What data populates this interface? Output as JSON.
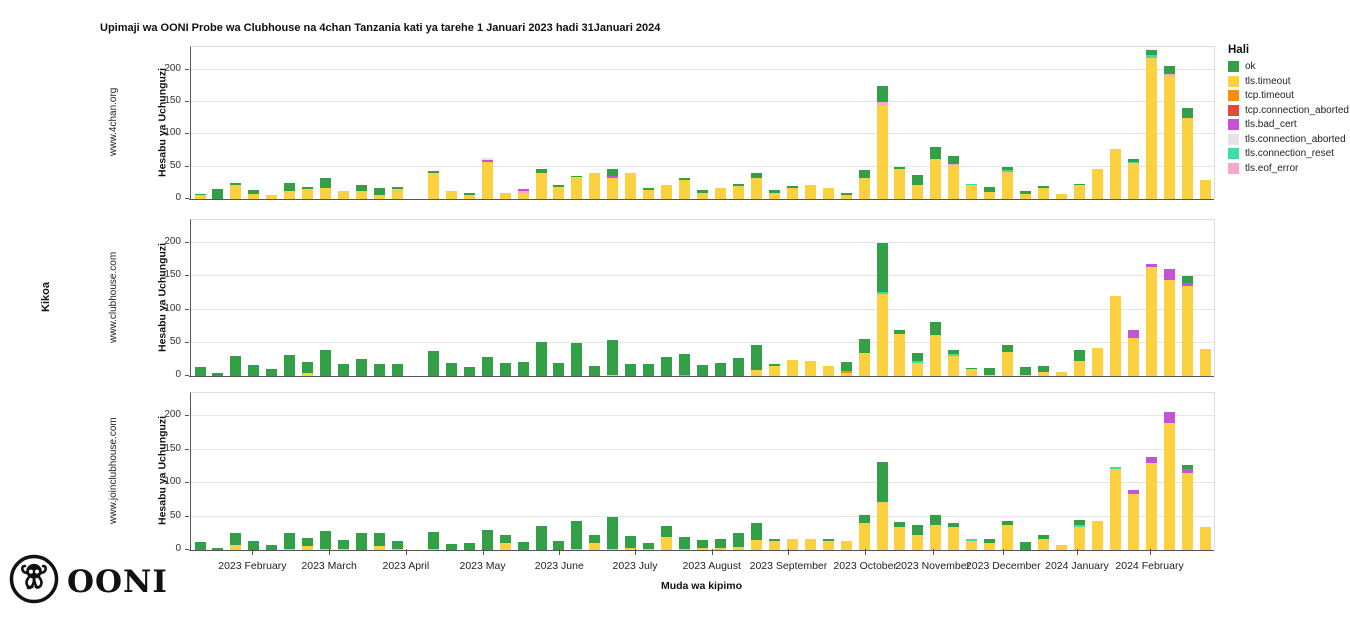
{
  "title": "Upimaji wa OONI Probe wa Clubhouse na 4chan Tanzania kati ya tarehe 1 Januari 2023 hadi 31Januari 2024",
  "axes": {
    "y_label": "Hesabu ya Uchunguzi",
    "x_label": "Muda wa kipimo",
    "row_label": "Kikoa",
    "y_ticks": [
      0,
      50,
      100,
      150,
      200
    ]
  },
  "legend": {
    "title": "Hali",
    "entries": [
      {
        "label": "ok",
        "color": "#33a047"
      },
      {
        "label": "tls.timeout",
        "color": "#fcd13f"
      },
      {
        "label": "tcp.timeout",
        "color": "#ff8c0e"
      },
      {
        "label": "tcp.connection_aborted",
        "color": "#e8473f"
      },
      {
        "label": "tls.bad_cert",
        "color": "#c353d8"
      },
      {
        "label": "tls.connection_aborted",
        "color": "#e3e3ea"
      },
      {
        "label": "tls.connection_reset",
        "color": "#3edca6"
      },
      {
        "label": "tls.eof_error",
        "color": "#f9a6c9"
      }
    ]
  },
  "logo_text": "OONI",
  "chart_data": {
    "type": "bar",
    "stacked": true,
    "ylim": [
      0,
      235
    ],
    "grid": true,
    "legend_position": "right",
    "x_unit": "week",
    "x_tick_labels": [
      "2023 February",
      "2023 March",
      "2023 April",
      "2023 May",
      "2023 June",
      "2023 July",
      "2023 August",
      "2023 September",
      "2023 October",
      "2023 November",
      "2023 December",
      "2024 January",
      "2024 February"
    ],
    "x_tick_pos_pct": [
      6.1,
      13.6,
      21.1,
      28.6,
      36.1,
      43.5,
      51.0,
      58.5,
      66.0,
      72.6,
      79.5,
      86.7,
      93.8
    ],
    "stack_order": [
      "tls.timeout",
      "tcp.timeout",
      "tcp.connection_aborted",
      "tls.eof_error",
      "tls.bad_cert",
      "tls.connection_aborted",
      "tls.connection_reset",
      "ok"
    ],
    "status_colors": {
      "ok": "#33a047",
      "tls.timeout": "#fcd13f",
      "tcp.timeout": "#ff8c0e",
      "tcp.connection_aborted": "#e8473f",
      "tls.bad_cert": "#c353d8",
      "tls.connection_aborted": "#e3e3ea",
      "tls.connection_reset": "#3edca6",
      "tls.eof_error": "#f9a6c9"
    },
    "facets": [
      {
        "label": "www.4chan.org",
        "bars": [
          {
            "tls.timeout": 6,
            "ok": 2
          },
          {
            "ok": 16
          },
          {
            "tls.timeout": 22,
            "ok": 3
          },
          {
            "tls.timeout": 8,
            "ok": 6
          },
          {
            "tls.timeout": 7
          },
          {
            "tls.timeout": 12,
            "ok": 13
          },
          {
            "tls.timeout": 15,
            "ok": 4
          },
          {
            "tls.timeout": 17,
            "ok": 15
          },
          {
            "tls.timeout": 13
          },
          {
            "tls.timeout": 12,
            "ok": 10
          },
          {
            "tls.timeout": 7,
            "ok": 10
          },
          {
            "tls.timeout": 16,
            "ok": 3
          },
          null,
          {
            "tls.timeout": 41,
            "ok": 2
          },
          {
            "tls.timeout": 13
          },
          {
            "tls.timeout": 7,
            "ok": 2
          },
          {
            "tls.timeout": 57,
            "tls.bad_cert": 4,
            "tls.connection_aborted": 2
          },
          {
            "tls.timeout": 10
          },
          {
            "tls.timeout": 10,
            "tls.eof_error": 2,
            "tls.bad_cert": 4
          },
          {
            "tls.timeout": 40,
            "ok": 7
          },
          {
            "tls.timeout": 18,
            "ok": 4
          },
          {
            "tls.timeout": 34,
            "ok": 2
          },
          {
            "tls.timeout": 40
          },
          {
            "tls.timeout": 32,
            "tls.bad_cert": 3,
            "ok": 11
          },
          {
            "tls.timeout": 41
          },
          {
            "tls.timeout": 14,
            "ok": 3
          },
          {
            "tls.timeout": 22
          },
          {
            "tls.timeout": 29,
            "ok": 3
          },
          {
            "tls.timeout": 10,
            "ok": 4
          },
          {
            "tls.timeout": 17
          },
          {
            "tls.timeout": 20,
            "ok": 3
          },
          {
            "tls.timeout": 32,
            "ok": 8
          },
          {
            "tls.timeout": 9,
            "ok": 5
          },
          {
            "tls.timeout": 17,
            "ok": 3
          },
          {
            "tls.timeout": 22
          },
          {
            "tls.timeout": 17
          },
          {
            "tls.timeout": 7,
            "ok": 3
          },
          {
            "tls.timeout": 33,
            "ok": 12
          },
          {
            "tls.timeout": 145,
            "tls.eof_error": 5,
            "ok": 25
          },
          {
            "tls.timeout": 46,
            "ok": 3
          },
          {
            "tls.timeout": 22,
            "ok": 16
          },
          {
            "tls.timeout": 62,
            "ok": 18
          },
          {
            "tls.timeout": 52,
            "tls.eof_error": 3,
            "ok": 12
          },
          {
            "tls.timeout": 21,
            "tls.connection_reset": 3
          },
          {
            "tls.timeout": 11,
            "ok": 7
          },
          {
            "tls.timeout": 42,
            "tls.connection_reset": 3,
            "ok": 4
          },
          {
            "tls.timeout": 8,
            "ok": 5
          },
          {
            "tls.timeout": 17,
            "ok": 3
          },
          {
            "tls.timeout": 8
          },
          {
            "tls.timeout": 21,
            "ok": 3
          },
          {
            "tls.timeout": 46
          },
          {
            "tls.timeout": 78
          },
          {
            "tls.timeout": 55,
            "tls.connection_reset": 2,
            "ok": 5
          },
          {
            "tls.timeout": 218,
            "tls.connection_reset": 4,
            "ok": 8
          },
          {
            "tls.timeout": 190,
            "tls.eof_error": 3,
            "ok": 12
          },
          {
            "tls.timeout": 126,
            "ok": 14
          },
          {
            "tls.timeout": 30
          }
        ]
      },
      {
        "label": "www.clubhouse.com",
        "bars": [
          {
            "ok": 14
          },
          {
            "ok": 5
          },
          {
            "ok": 30
          },
          {
            "ok": 17
          },
          {
            "ok": 10
          },
          {
            "ok": 32
          },
          {
            "tls.timeout": 4,
            "ok": 17
          },
          {
            "ok": 39
          },
          {
            "ok": 18
          },
          {
            "ok": 26
          },
          {
            "ok": 18
          },
          {
            "ok": 18
          },
          null,
          {
            "ok": 38
          },
          {
            "ok": 20
          },
          {
            "ok": 13
          },
          {
            "ok": 28
          },
          {
            "ok": 19
          },
          {
            "ok": 21
          },
          {
            "ok": 52
          },
          {
            "ok": 19
          },
          {
            "ok": 50
          },
          {
            "ok": 15
          },
          {
            "tls.timeout": 2,
            "ok": 52
          },
          {
            "ok": 18
          },
          {
            "ok": 18
          },
          {
            "ok": 29
          },
          {
            "tls.connection_reset": 2,
            "ok": 31
          },
          {
            "ok": 16
          },
          {
            "ok": 19
          },
          {
            "ok": 27
          },
          {
            "tls.timeout": 9,
            "ok": 38
          },
          {
            "tls.timeout": 15,
            "ok": 3
          },
          {
            "tls.timeout": 24
          },
          {
            "tls.timeout": 23
          },
          {
            "tls.timeout": 15
          },
          {
            "tls.timeout": 5,
            "tcp.timeout": 2,
            "ok": 14
          },
          {
            "tls.timeout": 35,
            "ok": 21
          },
          {
            "tls.timeout": 123,
            "tls.connection_reset": 4,
            "ok": 73
          },
          {
            "tls.timeout": 63,
            "ok": 6
          },
          {
            "tls.timeout": 20,
            "tls.connection_reset": 2,
            "ok": 13
          },
          {
            "tls.timeout": 62,
            "ok": 19
          },
          {
            "tls.timeout": 30,
            "tls.connection_reset": 3,
            "ok": 7
          },
          {
            "tls.timeout": 10,
            "ok": 2
          },
          {
            "tls.timeout": 2,
            "ok": 10
          },
          {
            "tls.timeout": 36,
            "ok": 11
          },
          {
            "tls.timeout": 2,
            "ok": 12
          },
          {
            "tls.timeout": 6,
            "ok": 9
          },
          {
            "tls.timeout": 6
          },
          {
            "tls.timeout": 22,
            "ok": 18
          },
          {
            "tls.timeout": 42
          },
          {
            "tls.timeout": 120
          },
          {
            "tls.timeout": 58,
            "tls.bad_cert": 11
          },
          {
            "tls.timeout": 164,
            "tls.bad_cert": 5
          },
          {
            "tls.timeout": 144,
            "tls.bad_cert": 18
          },
          {
            "tls.timeout": 135,
            "tls.bad_cert": 5,
            "ok": 11
          },
          {
            "tls.timeout": 41
          }
        ]
      },
      {
        "label": "www.joinclubhouse.com",
        "bars": [
          {
            "ok": 12
          },
          {
            "ok": 3
          },
          {
            "tls.timeout": 8,
            "ok": 17
          },
          {
            "ok": 14
          },
          {
            "ok": 8
          },
          {
            "tls.timeout": 2,
            "ok": 24
          },
          {
            "tls.timeout": 6,
            "ok": 12
          },
          {
            "tls.timeout": 2,
            "ok": 26
          },
          {
            "tls.timeout": 2,
            "ok": 13
          },
          {
            "ok": 26
          },
          {
            "tls.timeout": 6,
            "ok": 19
          },
          {
            "tls.timeout": 2,
            "ok": 12
          },
          null,
          {
            "tls.timeout": 2,
            "ok": 25
          },
          {
            "ok": 9
          },
          {
            "ok": 11
          },
          {
            "ok": 30
          },
          {
            "tls.timeout": 11,
            "ok": 11
          },
          {
            "ok": 12
          },
          {
            "ok": 36
          },
          {
            "ok": 14
          },
          {
            "tls.timeout": 2,
            "ok": 42
          },
          {
            "tls.timeout": 11,
            "ok": 12
          },
          {
            "tls.timeout": 2,
            "ok": 48
          },
          {
            "tls.timeout": 3,
            "ok": 18
          },
          {
            "tls.timeout": 2,
            "ok": 9
          },
          {
            "tls.timeout": 19,
            "ok": 17
          },
          {
            "tls.timeout": 2,
            "ok": 18
          },
          {
            "tls.timeout": 3,
            "ok": 12
          },
          {
            "tls.timeout": 3,
            "ok": 13
          },
          {
            "tls.timeout": 5,
            "ok": 20
          },
          {
            "tls.timeout": 15,
            "ok": 25
          },
          {
            "tls.timeout": 13,
            "ok": 3
          },
          {
            "tls.timeout": 16
          },
          {
            "tls.timeout": 16
          },
          {
            "tls.timeout": 13,
            "ok": 3
          },
          {
            "tls.timeout": 14
          },
          {
            "tls.timeout": 40,
            "ok": 13
          },
          {
            "tls.timeout": 72,
            "ok": 60
          },
          {
            "tls.timeout": 35,
            "ok": 7
          },
          {
            "tls.timeout": 23,
            "ok": 14
          },
          {
            "tls.timeout": 38,
            "ok": 15
          },
          {
            "tls.timeout": 34,
            "ok": 6
          },
          {
            "tls.timeout": 14,
            "tls.connection_reset": 2
          },
          {
            "tls.timeout": 11,
            "ok": 5
          },
          {
            "tls.timeout": 38,
            "ok": 5
          },
          {
            "ok": 12
          },
          {
            "tls.timeout": 16,
            "ok": 7
          },
          {
            "tls.timeout": 8
          },
          {
            "tls.timeout": 35,
            "tls.connection_reset": 3,
            "ok": 7
          },
          {
            "tls.timeout": 44
          },
          {
            "tls.timeout": 122,
            "tls.connection_reset": 2
          },
          {
            "tls.timeout": 84,
            "tls.bad_cert": 6
          },
          {
            "tls.timeout": 130,
            "tls.bad_cert": 9
          },
          {
            "tls.timeout": 190,
            "tls.bad_cert": 16
          },
          {
            "tls.timeout": 116,
            "tls.bad_cert": 6,
            "ok": 6
          },
          {
            "tls.timeout": 34
          }
        ]
      }
    ]
  }
}
